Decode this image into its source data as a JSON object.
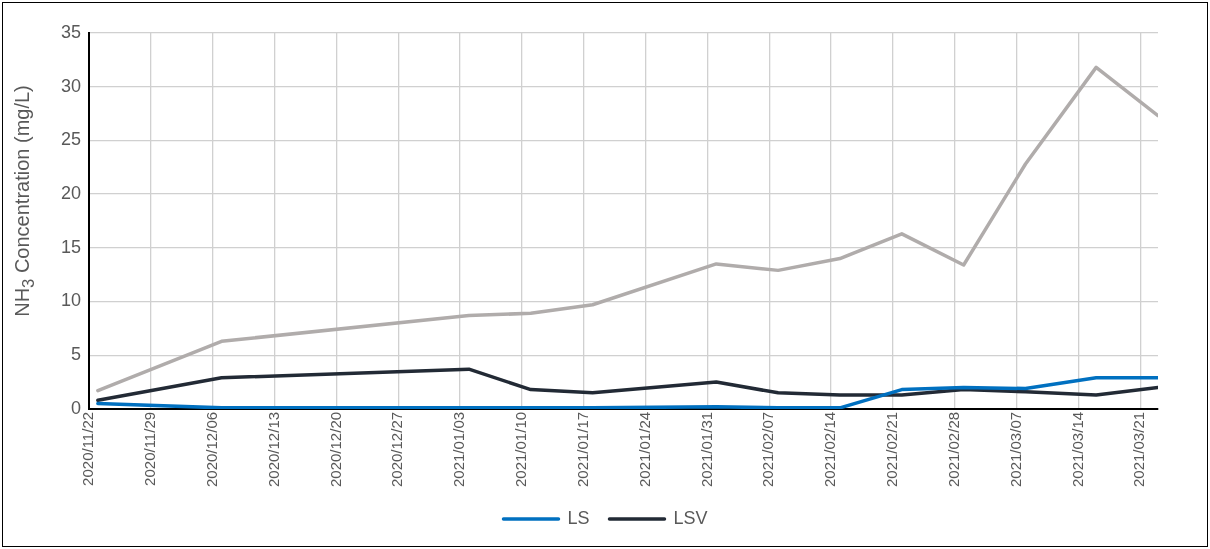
{
  "chart_data": {
    "type": "line",
    "ylabel": "NH$_{3}$ Concentration (mg/L)",
    "x": [
      "2020-11-23",
      "2020-12-07",
      "2021-01-04",
      "2021-01-11",
      "2021-01-18",
      "2021-02-01",
      "2021-02-08",
      "2021-02-15",
      "2021-02-22",
      "2021-03-01",
      "2021-03-08",
      "2021-03-16",
      "2021-03-23"
    ],
    "series": [
      {
        "name": "LS",
        "color": "#0070c0",
        "values": [
          0.5,
          0.1,
          0.1,
          0.1,
          0.1,
          0.2,
          0.1,
          0.1,
          1.8,
          2.0,
          1.9,
          2.9,
          2.9
        ]
      },
      {
        "name": "LSV",
        "color": "#222a35",
        "values": [
          0.8,
          2.9,
          3.7,
          1.8,
          1.5,
          2.5,
          1.5,
          1.3,
          1.3,
          1.8,
          1.6,
          1.3,
          2.0
        ]
      },
      {
        "color": "#b0acab",
        "values": [
          1.7,
          6.3,
          8.7,
          8.9,
          9.7,
          13.5,
          12.9,
          14.0,
          16.3,
          13.4,
          22.8,
          31.8,
          27.3
        ]
      }
    ],
    "xlim": [
      "2020-11-22",
      "2021-03-23"
    ],
    "xticks": [
      {
        "value": "2020-11-22",
        "label": "2020/11/22"
      },
      {
        "value": "2020-11-29",
        "label": "2020/11/29"
      },
      {
        "value": "2020-12-06",
        "label": "2020/12/06"
      },
      {
        "value": "2020-12-13",
        "label": "2020/12/13"
      },
      {
        "value": "2020-12-20",
        "label": "2020/12/20"
      },
      {
        "value": "2020-12-27",
        "label": "2020/12/27"
      },
      {
        "value": "2021-01-03",
        "label": "2021/01/03"
      },
      {
        "value": "2021-01-10",
        "label": "2021/01/10"
      },
      {
        "value": "2021-01-17",
        "label": "2021/01/17"
      },
      {
        "value": "2021-01-24",
        "label": "2021/01/24"
      },
      {
        "value": "2021-01-31",
        "label": "2021/01/31"
      },
      {
        "value": "2021-02-07",
        "label": "2021/02/07"
      },
      {
        "value": "2021-02-14",
        "label": "2021/02/14"
      },
      {
        "value": "2021-02-21",
        "label": "2021/02/21"
      },
      {
        "value": "2021-02-28",
        "label": "2021/02/28"
      },
      {
        "value": "2021-03-07",
        "label": "2021/03/07"
      },
      {
        "value": "2021-03-14",
        "label": "2021/03/14"
      },
      {
        "value": "2021-03-21",
        "label": "2021/03/21"
      }
    ],
    "ylim": [
      0,
      35
    ],
    "yticks": [
      0,
      5,
      10,
      15,
      20,
      25,
      30,
      35
    ],
    "grid": true,
    "legend": "bottom",
    "marker": "none",
    "line_style": "solid"
  }
}
